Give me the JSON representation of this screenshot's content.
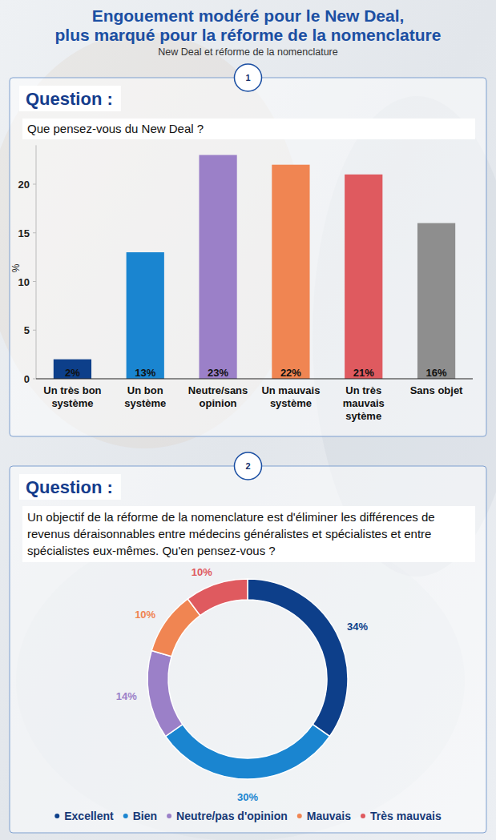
{
  "header": {
    "title": [
      "Engouement modéré pour le New Deal,",
      "plus marqué pour la réforme de la nomenclature"
    ],
    "subtitle": "New Deal et réforme de la nomenclature"
  },
  "chart_data": [
    {
      "type": "bar",
      "panel_label": "1",
      "heading": "Question :",
      "title": "Que pensez-vous du New Deal ?",
      "categories": [
        "Un très bon système",
        "Un bon système",
        "Neutre/sans opinion",
        "Un mauvais système",
        "Un très mauvais sytème",
        "Sans objet"
      ],
      "values": [
        2,
        13,
        23,
        22,
        21,
        16
      ],
      "value_labels": [
        "2%",
        "13%",
        "23%",
        "22%",
        "21%",
        "16%"
      ],
      "colors": [
        "#0d3f8a",
        "#1a85d0",
        "#9b80c8",
        "#f08552",
        "#df5a5f",
        "#8e8e8e"
      ],
      "y_label": "%",
      "ylim": [
        0,
        24
      ],
      "yticks": [
        0,
        5,
        10,
        15,
        20
      ],
      "grid": false,
      "data_labels": true
    },
    {
      "type": "donut",
      "panel_label": "2",
      "heading": "Question :",
      "title": "Un objectif de la réforme de la nomenclature est d'éliminer les différences de revenus déraisonnables entre médecins généralistes et spécialistes et entre spécialistes eux-mêmes. Qu'en pensez-vous ?",
      "categories": [
        "Excellent",
        "Bien",
        "Neutre/pas d'opinion",
        "Mauvais",
        "Très mauvais"
      ],
      "values": [
        34,
        30,
        14,
        10,
        10
      ],
      "value_labels": [
        "34%",
        "30%",
        "14%",
        "10%",
        "10%"
      ],
      "colors": [
        "#0d3f8a",
        "#1a85d0",
        "#9b80c8",
        "#f08552",
        "#df5a5f"
      ],
      "data_labels": true,
      "legend": "bottom"
    }
  ]
}
